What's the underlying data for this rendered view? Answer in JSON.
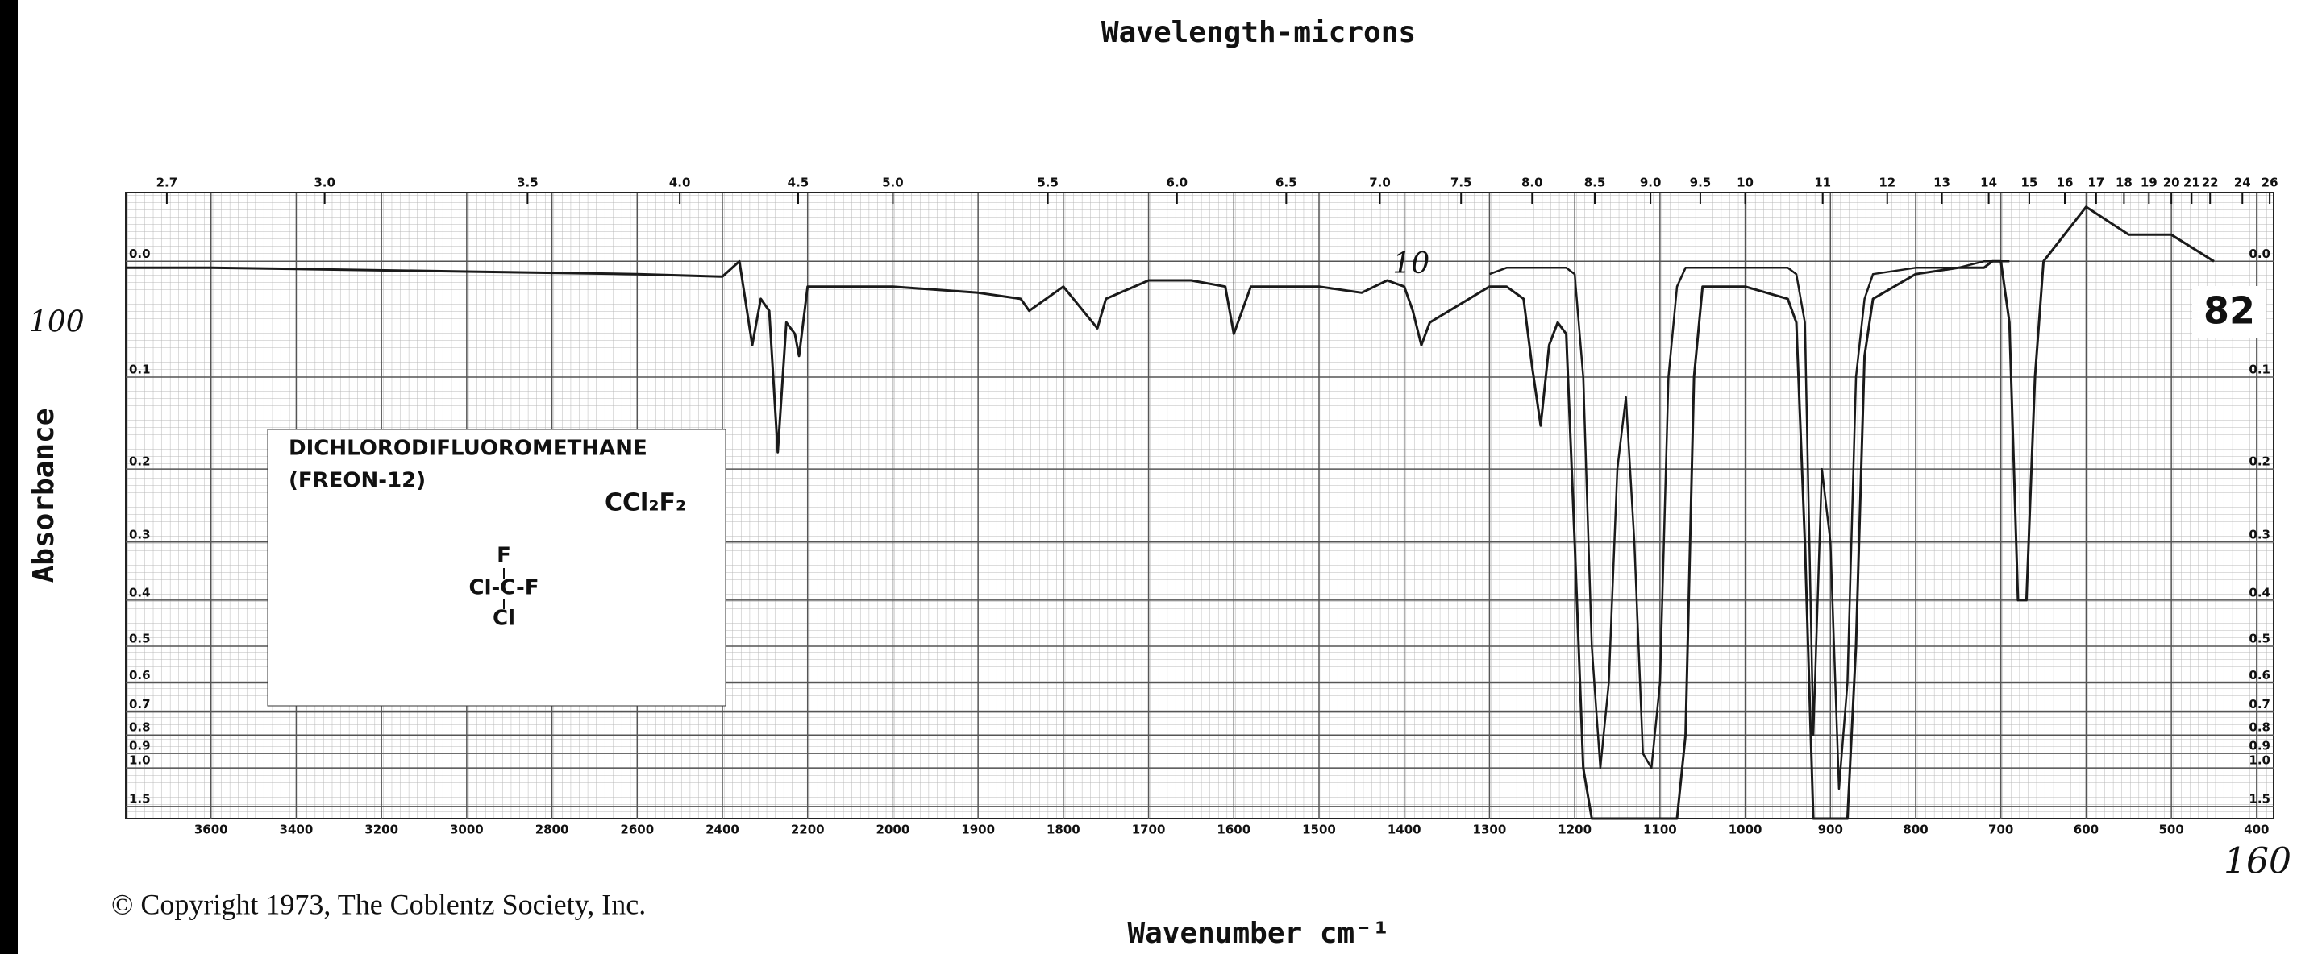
{
  "chart_data": {
    "type": "line",
    "x2_label": "Wavelength-microns",
    "x_label": "Wavenumber cm⁻¹",
    "y_label": "Absorbance",
    "x": [
      3800,
      3600,
      3400,
      3000,
      2600,
      2400,
      2360,
      2330,
      2310,
      2290,
      2270,
      2250,
      2230,
      2220,
      2200,
      2100,
      2000,
      1900,
      1850,
      1840,
      1800,
      1760,
      1750,
      1700,
      1650,
      1610,
      1600,
      1580,
      1500,
      1450,
      1420,
      1400,
      1390,
      1380,
      1370,
      1300,
      1280,
      1260,
      1250,
      1240,
      1230,
      1220,
      1210,
      1200,
      1190,
      1180,
      1170,
      1160,
      1150,
      1140,
      1130,
      1120,
      1110,
      1100,
      1090,
      1080,
      1070,
      1060,
      1050,
      1000,
      950,
      940,
      930,
      920,
      910,
      900,
      890,
      880,
      870,
      860,
      850,
      800,
      750,
      720,
      710,
      700,
      690,
      680,
      670,
      660,
      650,
      600,
      550,
      500,
      450
    ],
    "xlim": [
      3800,
      380
    ],
    "x_scale_break": 2000,
    "xticks": [
      3600,
      3400,
      3200,
      3000,
      2800,
      2600,
      2400,
      2200,
      2000,
      1900,
      1800,
      1700,
      1600,
      1500,
      1400,
      1300,
      1200,
      1100,
      1000,
      900,
      800,
      700,
      600,
      500,
      400
    ],
    "x2ticks": [
      2.7,
      {
        "value": 3,
        "label": "3.0"
      },
      3.5,
      {
        "value": 4,
        "label": "4.0"
      },
      4.5,
      {
        "value": 5,
        "label": "5.0"
      },
      5.5,
      {
        "value": 6,
        "label": "6.0"
      },
      6.5,
      {
        "value": 7,
        "label": "7.0"
      },
      7.5,
      {
        "value": 8,
        "label": "8.0"
      },
      8.5,
      {
        "value": 9,
        "label": "9.0"
      },
      9.5,
      10,
      11,
      12,
      13,
      14,
      15,
      16,
      17,
      18,
      19,
      20,
      21,
      22,
      24,
      26
    ],
    "ylim": [
      -0.05,
      2
    ],
    "y_scale": "transmittance",
    "yticks": [
      {
        "value": 0,
        "label": "0.0"
      },
      0.1,
      0.2,
      0.3,
      0.4,
      0.5,
      0.6,
      0.7,
      0.8,
      0.9,
      {
        "value": 1,
        "label": "1.0"
      },
      1.5
    ],
    "grid": true,
    "series": [
      {
        "name": "100",
        "color": "#1a1a1a",
        "values": [
          0.005,
          0.005,
          0.006,
          0.008,
          0.01,
          0.012,
          0,
          0.07,
          0.03,
          0.04,
          0.18,
          0.05,
          0.06,
          0.08,
          0.02,
          0.02,
          0.02,
          0.025,
          0.03,
          0.04,
          0.02,
          0.055,
          0.03,
          0.015,
          0.015,
          0.02,
          0.06,
          0.02,
          0.02,
          0.025,
          0.015,
          0.02,
          0.04,
          0.07,
          0.05,
          0.02,
          0.02,
          0.03,
          0.09,
          0.15,
          0.07,
          0.05,
          0.06,
          0.3,
          1,
          2,
          2,
          2,
          2,
          2,
          2,
          2,
          2,
          2,
          2,
          2,
          0.8,
          0.1,
          0.02,
          0.02,
          0.03,
          0.05,
          0.3,
          2,
          2,
          2,
          2,
          2,
          0.5,
          0.08,
          0.03,
          0.01,
          0.005,
          0.005,
          0,
          0,
          0.05,
          0.4,
          0.4,
          0.1,
          0,
          -0.04,
          -0.02,
          -0.02,
          0
        ]
      },
      {
        "name": "10",
        "color": "#1a1a1a",
        "values": [
          null,
          null,
          null,
          null,
          null,
          null,
          null,
          null,
          null,
          null,
          null,
          null,
          null,
          null,
          null,
          null,
          null,
          null,
          null,
          null,
          null,
          null,
          null,
          null,
          null,
          null,
          null,
          null,
          null,
          null,
          null,
          null,
          null,
          null,
          null,
          0.01,
          0.005,
          0.005,
          0.005,
          0.005,
          0.005,
          0.005,
          0.005,
          0.01,
          0.1,
          0.5,
          1,
          0.6,
          0.2,
          0.12,
          0.3,
          0.9,
          1,
          0.6,
          0.1,
          0.02,
          0.005,
          0.005,
          0.005,
          0.005,
          0.005,
          0.01,
          0.05,
          0.8,
          0.2,
          0.3,
          1.2,
          0.6,
          0.1,
          0.03,
          0.01,
          0.005,
          0.005,
          0,
          0,
          0,
          0,
          null,
          null,
          null,
          null,
          null,
          null,
          null,
          null
        ]
      }
    ],
    "compound": "DICHLORODIFLUOROMETHANE",
    "synonym": "(FREON-12)",
    "formula": "CCl₂F₂",
    "structure": [
      "F",
      "Cl-C-F",
      "Cl"
    ],
    "plate_number": "82",
    "handwritten_note": "160",
    "copyright": "© Copyright 1973, The Coblentz Society, Inc."
  }
}
